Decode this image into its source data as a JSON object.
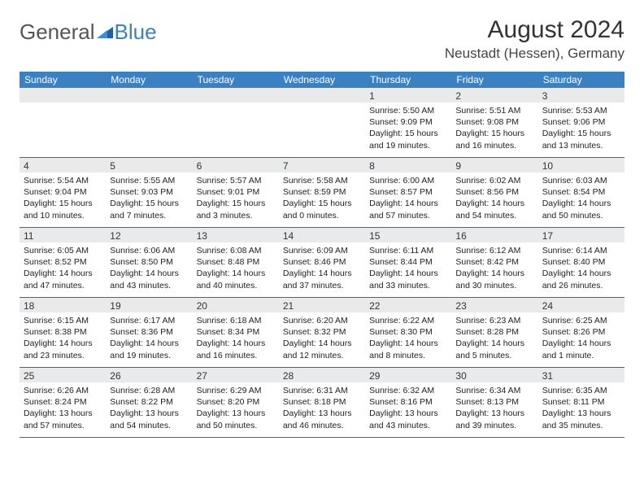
{
  "logo": {
    "text_part1": "General",
    "text_part2": "Blue"
  },
  "header": {
    "month_title": "August 2024",
    "subtitle": "Neustadt (Hessen), Germany"
  },
  "colors": {
    "header_bar": "#3a81c4",
    "daynum_bg": "#e9eaec",
    "week_border": "#3a6a9a"
  },
  "day_names": [
    "Sunday",
    "Monday",
    "Tuesday",
    "Wednesday",
    "Thursday",
    "Friday",
    "Saturday"
  ],
  "weeks": [
    [
      null,
      null,
      null,
      null,
      {
        "d": "1",
        "sr": "5:50 AM",
        "ss": "9:09 PM",
        "dl": "15 hours and 19 minutes."
      },
      {
        "d": "2",
        "sr": "5:51 AM",
        "ss": "9:08 PM",
        "dl": "15 hours and 16 minutes."
      },
      {
        "d": "3",
        "sr": "5:53 AM",
        "ss": "9:06 PM",
        "dl": "15 hours and 13 minutes."
      }
    ],
    [
      {
        "d": "4",
        "sr": "5:54 AM",
        "ss": "9:04 PM",
        "dl": "15 hours and 10 minutes."
      },
      {
        "d": "5",
        "sr": "5:55 AM",
        "ss": "9:03 PM",
        "dl": "15 hours and 7 minutes."
      },
      {
        "d": "6",
        "sr": "5:57 AM",
        "ss": "9:01 PM",
        "dl": "15 hours and 3 minutes."
      },
      {
        "d": "7",
        "sr": "5:58 AM",
        "ss": "8:59 PM",
        "dl": "15 hours and 0 minutes."
      },
      {
        "d": "8",
        "sr": "6:00 AM",
        "ss": "8:57 PM",
        "dl": "14 hours and 57 minutes."
      },
      {
        "d": "9",
        "sr": "6:02 AM",
        "ss": "8:56 PM",
        "dl": "14 hours and 54 minutes."
      },
      {
        "d": "10",
        "sr": "6:03 AM",
        "ss": "8:54 PM",
        "dl": "14 hours and 50 minutes."
      }
    ],
    [
      {
        "d": "11",
        "sr": "6:05 AM",
        "ss": "8:52 PM",
        "dl": "14 hours and 47 minutes."
      },
      {
        "d": "12",
        "sr": "6:06 AM",
        "ss": "8:50 PM",
        "dl": "14 hours and 43 minutes."
      },
      {
        "d": "13",
        "sr": "6:08 AM",
        "ss": "8:48 PM",
        "dl": "14 hours and 40 minutes."
      },
      {
        "d": "14",
        "sr": "6:09 AM",
        "ss": "8:46 PM",
        "dl": "14 hours and 37 minutes."
      },
      {
        "d": "15",
        "sr": "6:11 AM",
        "ss": "8:44 PM",
        "dl": "14 hours and 33 minutes."
      },
      {
        "d": "16",
        "sr": "6:12 AM",
        "ss": "8:42 PM",
        "dl": "14 hours and 30 minutes."
      },
      {
        "d": "17",
        "sr": "6:14 AM",
        "ss": "8:40 PM",
        "dl": "14 hours and 26 minutes."
      }
    ],
    [
      {
        "d": "18",
        "sr": "6:15 AM",
        "ss": "8:38 PM",
        "dl": "14 hours and 23 minutes."
      },
      {
        "d": "19",
        "sr": "6:17 AM",
        "ss": "8:36 PM",
        "dl": "14 hours and 19 minutes."
      },
      {
        "d": "20",
        "sr": "6:18 AM",
        "ss": "8:34 PM",
        "dl": "14 hours and 16 minutes."
      },
      {
        "d": "21",
        "sr": "6:20 AM",
        "ss": "8:32 PM",
        "dl": "14 hours and 12 minutes."
      },
      {
        "d": "22",
        "sr": "6:22 AM",
        "ss": "8:30 PM",
        "dl": "14 hours and 8 minutes."
      },
      {
        "d": "23",
        "sr": "6:23 AM",
        "ss": "8:28 PM",
        "dl": "14 hours and 5 minutes."
      },
      {
        "d": "24",
        "sr": "6:25 AM",
        "ss": "8:26 PM",
        "dl": "14 hours and 1 minute."
      }
    ],
    [
      {
        "d": "25",
        "sr": "6:26 AM",
        "ss": "8:24 PM",
        "dl": "13 hours and 57 minutes."
      },
      {
        "d": "26",
        "sr": "6:28 AM",
        "ss": "8:22 PM",
        "dl": "13 hours and 54 minutes."
      },
      {
        "d": "27",
        "sr": "6:29 AM",
        "ss": "8:20 PM",
        "dl": "13 hours and 50 minutes."
      },
      {
        "d": "28",
        "sr": "6:31 AM",
        "ss": "8:18 PM",
        "dl": "13 hours and 46 minutes."
      },
      {
        "d": "29",
        "sr": "6:32 AM",
        "ss": "8:16 PM",
        "dl": "13 hours and 43 minutes."
      },
      {
        "d": "30",
        "sr": "6:34 AM",
        "ss": "8:13 PM",
        "dl": "13 hours and 39 minutes."
      },
      {
        "d": "31",
        "sr": "6:35 AM",
        "ss": "8:11 PM",
        "dl": "13 hours and 35 minutes."
      }
    ]
  ],
  "labels": {
    "sunrise": "Sunrise: ",
    "sunset": "Sunset: ",
    "daylight": "Daylight: "
  }
}
